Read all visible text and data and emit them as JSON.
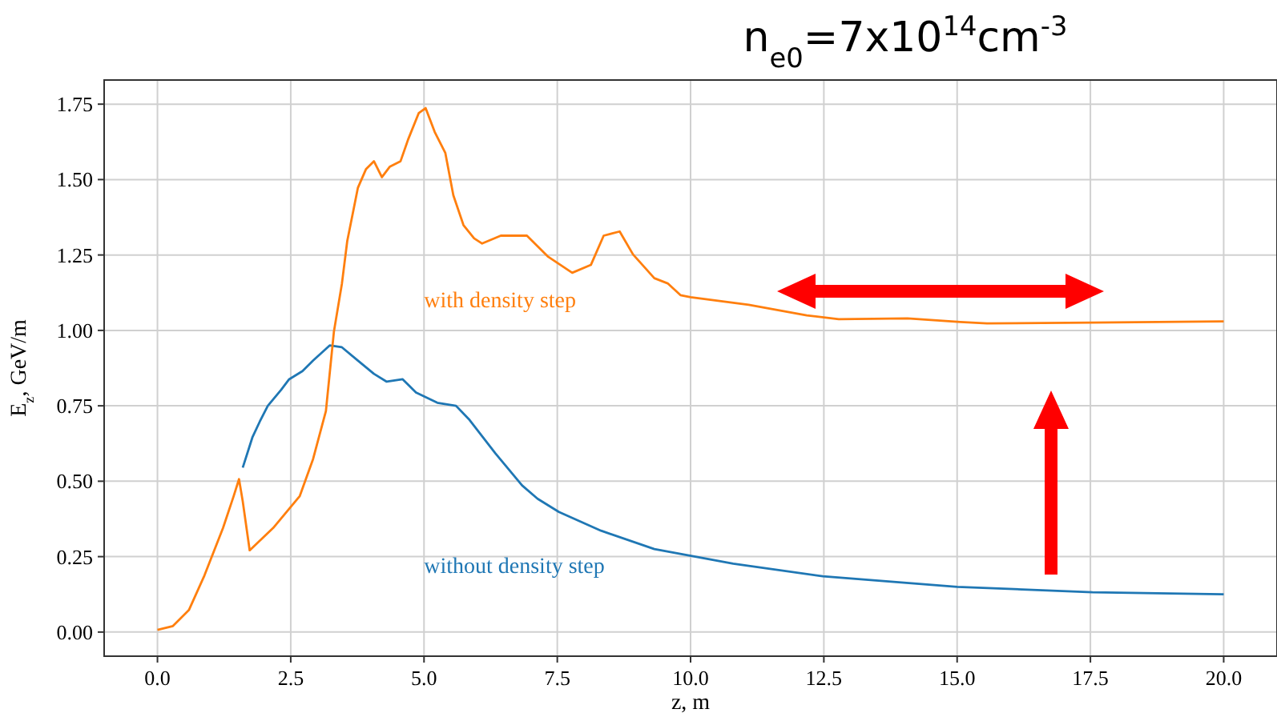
{
  "chart_data": {
    "type": "line",
    "title": "n$_{e0}$=7x10$^{14}$cm$^{-3}$",
    "xlabel": "z, m",
    "ylabel": "E$_{z}$, GeV/m",
    "xlim": [
      -1,
      21
    ],
    "ylim": [
      -0.08,
      1.83
    ],
    "xticks": [
      {
        "value": 0,
        "label": "0.0"
      },
      {
        "value": 2.5,
        "label": "2.5"
      },
      {
        "value": 5,
        "label": "5.0"
      },
      {
        "value": 7.5,
        "label": "7.5"
      },
      {
        "value": 10,
        "label": "10.0"
      },
      {
        "value": 12.5,
        "label": "12.5"
      },
      {
        "value": 15,
        "label": "15.0"
      },
      {
        "value": 17.5,
        "label": "17.5"
      },
      {
        "value": 20,
        "label": "20.0"
      }
    ],
    "yticks": [
      {
        "value": 0,
        "label": "0.00"
      },
      {
        "value": 0.25,
        "label": "0.25"
      },
      {
        "value": 0.5,
        "label": "0.50"
      },
      {
        "value": 0.75,
        "label": "0.75"
      },
      {
        "value": 1,
        "label": "1.00"
      },
      {
        "value": 1.25,
        "label": "1.25"
      },
      {
        "value": 1.5,
        "label": "1.50"
      },
      {
        "value": 1.75,
        "label": "1.75"
      }
    ],
    "grid": true,
    "line_style": "solid",
    "marker": "none",
    "series": [
      {
        "name": "with density step",
        "color": "#ff7f0e",
        "x": [
          0,
          0.29,
          0.59,
          0.88,
          1.23,
          1.43,
          1.53,
          1.6,
          1.73,
          2.17,
          2.67,
          2.92,
          3.16,
          3.31,
          3.46,
          3.56,
          3.76,
          3.91,
          4.06,
          4.21,
          4.36,
          4.56,
          4.7,
          4.9,
          5.03,
          5.2,
          5.4,
          5.55,
          5.74,
          5.94,
          6.09,
          6.44,
          6.93,
          7.33,
          7.78,
          8.13,
          8.37,
          8.67,
          8.92,
          9.32,
          9.57,
          9.81,
          10,
          11.09,
          12.18,
          12.78,
          14.07,
          15.06,
          15.56,
          17.54,
          20
        ],
        "values": [
          0.007,
          0.02,
          0.073,
          0.187,
          0.345,
          0.451,
          0.507,
          0.433,
          0.271,
          0.345,
          0.451,
          0.574,
          0.733,
          0.996,
          1.155,
          1.296,
          1.473,
          1.534,
          1.561,
          1.508,
          1.543,
          1.561,
          1.632,
          1.72,
          1.737,
          1.658,
          1.588,
          1.448,
          1.349,
          1.305,
          1.288,
          1.314,
          1.314,
          1.244,
          1.191,
          1.217,
          1.314,
          1.328,
          1.252,
          1.173,
          1.156,
          1.117,
          1.11,
          1.085,
          1.05,
          1.037,
          1.04,
          1.028,
          1.023,
          1.026,
          1.03
        ]
      },
      {
        "name": "without density step",
        "color": "#1f77b4",
        "x": [
          1.6,
          1.78,
          1.92,
          2.07,
          2.32,
          2.47,
          2.72,
          2.92,
          3.23,
          3.46,
          3.76,
          4.06,
          4.3,
          4.6,
          4.85,
          5.25,
          5.6,
          5.84,
          6.34,
          6.84,
          7.13,
          7.53,
          8.32,
          9.32,
          10.8,
          12.48,
          15,
          17.54,
          20
        ],
        "values": [
          0.545,
          0.645,
          0.698,
          0.75,
          0.803,
          0.838,
          0.865,
          0.9,
          0.95,
          0.944,
          0.9,
          0.856,
          0.83,
          0.838,
          0.794,
          0.76,
          0.75,
          0.706,
          0.592,
          0.486,
          0.442,
          0.398,
          0.336,
          0.275,
          0.227,
          0.185,
          0.15,
          0.132,
          0.125
        ]
      }
    ]
  }
}
